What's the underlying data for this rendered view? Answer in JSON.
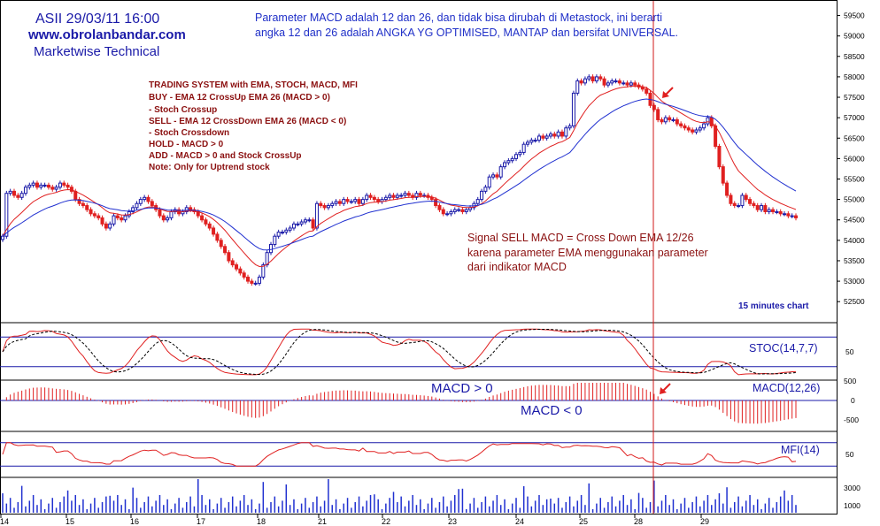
{
  "header": {
    "title_line1": "ASII 29/03/11 16:00",
    "title_line2": "www.obrolanbandar.com",
    "title_line3": "Marketwise Technical",
    "note_line1": "Parameter MACD adalah 12 dan 26, dan tidak bisa dirubah di Metastock, ini berarti",
    "note_line2": "angka 12 dan 26 adalah ANGKA YG OPTIMISED, MANTAP dan bersifat UNIVERSAL."
  },
  "system_box": {
    "lines": [
      "TRADING SYSTEM with  EMA, STOCH, MACD, MFI",
      "BUY   -  EMA 12 CrossUp EMA 26 (MACD > 0)",
      "           -  Stoch Crossup",
      "SELL  -  EMA 12 CrossDown EMA 26 (MACD < 0)",
      "           -  Stoch Crossdown",
      "HOLD  -  MACD > 0",
      "ADD    -  MACD > 0 and Stock CrossUp",
      "Note: Only for Uptrend stock"
    ]
  },
  "signal_note": {
    "line1": "Signal SELL MACD = Cross Down EMA 12/26",
    "line2": "karena parameter EMA menggunakan parameter",
    "line3": "dari indikator MACD"
  },
  "labels": {
    "timeframe": "15 minutes chart",
    "stoch": "STOC(14,7,7)",
    "macd": "MACD(12,26)",
    "mfi": "MFI(14)",
    "macd_pos": "MACD > 0",
    "macd_neg": "MACD < 0"
  },
  "colors": {
    "up_candle": "#1a1aa8",
    "down_candle": "#e02020",
    "ema12": "#e02020",
    "ema26": "#2030d0",
    "title": "#1a1aa8",
    "note": "#3030c0",
    "system": "#8b1010",
    "signal": "#8b1010",
    "grid": "#1a1aa8",
    "vline": "#d01818"
  },
  "chart_data": {
    "type": "line",
    "x_labels": [
      "14",
      "15",
      "16",
      "17",
      "18",
      "21",
      "22",
      "23",
      "24",
      "25",
      "28",
      "29"
    ],
    "price_axis": {
      "ticks": [
        52500,
        53000,
        53500,
        54000,
        54500,
        55000,
        55500,
        56000,
        56500,
        57000,
        57500,
        58000,
        58500,
        59000,
        59500
      ],
      "tick_labels": [
        "52500",
        "53000",
        "53500",
        "54000",
        "54500",
        "55000",
        "55500",
        "56000",
        "56500",
        "57000",
        "57500",
        "58000",
        "58500",
        "59000",
        "59500"
      ],
      "range": [
        52050,
        59750
      ]
    },
    "stoch_axis": {
      "tick_labels": [
        "50"
      ],
      "ticks": [
        50
      ],
      "bands": [
        80,
        20
      ]
    },
    "macd_axis": {
      "tick_labels": [
        "500",
        "0",
        "-500"
      ],
      "ticks": [
        500,
        0,
        -500
      ]
    },
    "mfi_axis": {
      "tick_labels": [
        "50"
      ],
      "ticks": [
        50
      ],
      "bands": [
        80,
        20
      ]
    },
    "volume_axis": {
      "tick_labels": [
        "3000",
        "1000"
      ],
      "ticks": [
        3000,
        1000
      ]
    },
    "close": [
      54100,
      55150,
      55200,
      55100,
      55050,
      55150,
      55300,
      55350,
      55400,
      55300,
      55350,
      55350,
      55300,
      55250,
      55300,
      55400,
      55350,
      55300,
      55200,
      55000,
      54900,
      54850,
      54750,
      54650,
      54600,
      54550,
      54400,
      54300,
      54400,
      54600,
      54550,
      54500,
      54600,
      54700,
      54800,
      54900,
      55000,
      55050,
      54950,
      54850,
      54750,
      54600,
      54500,
      54550,
      54700,
      54750,
      54650,
      54700,
      54800,
      54750,
      54700,
      54600,
      54500,
      54400,
      54300,
      54150,
      54000,
      53850,
      53700,
      53500,
      53400,
      53300,
      53200,
      53100,
      53000,
      52950,
      52950,
      53100,
      53400,
      53700,
      53900,
      54100,
      54200,
      54200,
      54250,
      54300,
      54400,
      54400,
      54450,
      54500,
      54500,
      54300,
      54900,
      54850,
      54800,
      54850,
      54900,
      54950,
      54900,
      55000,
      54950,
      54950,
      55000,
      54900,
      55000,
      55100,
      55050,
      55000,
      54950,
      55000,
      55050,
      55100,
      55050,
      55100,
      55100,
      55150,
      55100,
      55050,
      55150,
      55100,
      55100,
      55050,
      55000,
      54850,
      54750,
      54650,
      54650,
      54700,
      54750,
      54750,
      54700,
      54750,
      54800,
      54900,
      55000,
      55200,
      55300,
      55550,
      55600,
      55550,
      55800,
      55900,
      55950,
      56000,
      56100,
      56150,
      56350,
      56400,
      56450,
      56450,
      56550,
      56500,
      56550,
      56600,
      56550,
      56650,
      56550,
      56750,
      56800,
      57600,
      57900,
      57850,
      57950,
      58000,
      57900,
      58000,
      57950,
      57800,
      57850,
      57900,
      57900,
      57850,
      57850,
      57800,
      57850,
      57800,
      57750,
      57700,
      57600,
      57300,
      57200,
      56950,
      56900,
      57000,
      56950,
      56950,
      56850,
      56800,
      56750,
      56700,
      56650,
      56700,
      56750,
      56850,
      57000,
      56800,
      56300,
      55800,
      55400,
      55100,
      54900,
      54850,
      54850,
      55100,
      55000,
      54900,
      54850,
      54750,
      54850,
      54700,
      54750,
      54700,
      54700,
      54650,
      54650,
      54600,
      54600,
      54550
    ],
    "ema12": [],
    "ema26": []
  }
}
